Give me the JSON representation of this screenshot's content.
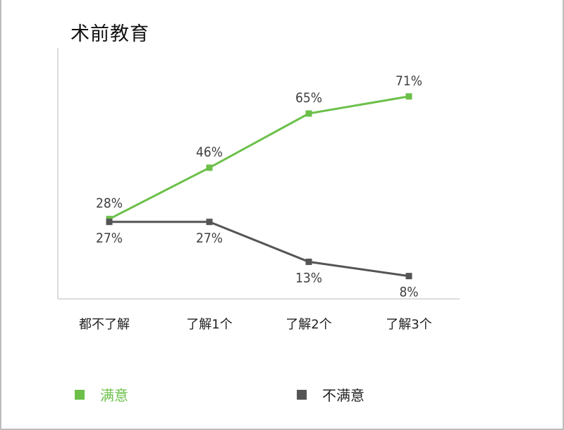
{
  "title": "术前教育",
  "colors": {
    "satisfied": "#6cc04a",
    "dissatisfied": "#555555",
    "axis": "#dcdcdc"
  },
  "chart_data": {
    "type": "line",
    "title": "术前教育",
    "categories": [
      "都不了解",
      "了解1个",
      "了解2个",
      "了解3个"
    ],
    "series": [
      {
        "name": "满意",
        "values": [
          28,
          46,
          65,
          71
        ],
        "labels": [
          "28%",
          "46%",
          "65%",
          "71%"
        ]
      },
      {
        "name": "不满意",
        "values": [
          27,
          27,
          13,
          8
        ],
        "labels": [
          "27%",
          "27%",
          "13%",
          "8%"
        ]
      }
    ],
    "y_unit": "%",
    "ylim": [
      0,
      88
    ],
    "grid": false,
    "legend": "bottom"
  }
}
